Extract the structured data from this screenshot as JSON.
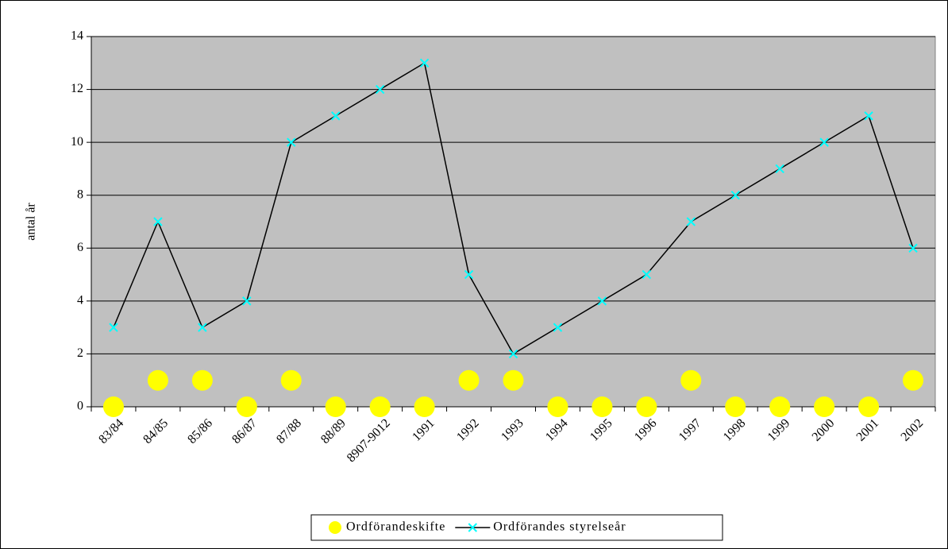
{
  "chart_data": {
    "type": "line",
    "y_label": "antal år",
    "categories": [
      "83/84",
      "84/85",
      "85/86",
      "86/87",
      "87/88",
      "88/89",
      "8907-9012",
      "1991",
      "1992",
      "1993",
      "1994",
      "1995",
      "1996",
      "1997",
      "1998",
      "1999",
      "2000",
      "2001",
      "2002"
    ],
    "series": [
      {
        "name": "Ordförandeskifte",
        "color": "#ffff00",
        "marker": "circle",
        "line": false,
        "values": [
          0,
          1,
          1,
          0,
          1,
          0,
          0,
          0,
          1,
          1,
          0,
          0,
          0,
          1,
          0,
          0,
          0,
          0,
          1
        ]
      },
      {
        "name": "Ordförandes styrelseår",
        "color": "#00ffff",
        "marker": "x",
        "line": true,
        "values": [
          3,
          7,
          3,
          4,
          10,
          11,
          12,
          13,
          5,
          2,
          3,
          4,
          5,
          7,
          8,
          9,
          10,
          11,
          6
        ]
      }
    ],
    "ylim": [
      0,
      14
    ],
    "yticks": [
      0,
      2,
      4,
      6,
      8,
      10,
      12,
      14
    ],
    "grid": true,
    "plot_background": "#c0c0c0",
    "legend": "bottom"
  }
}
